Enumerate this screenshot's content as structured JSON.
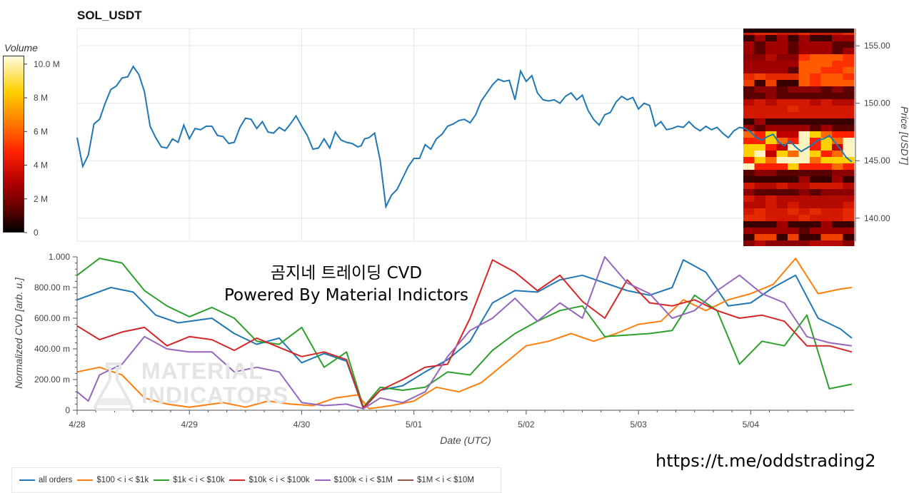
{
  "chart_data": [
    {
      "type": "line",
      "title": "SOL_USDT",
      "ylabel": "Price [USDT]",
      "ylim": [
        138,
        156.5
      ],
      "yticks": [
        "140.00",
        "145.00",
        "150.00",
        "155.00"
      ],
      "xlim": [
        0,
        6.92
      ],
      "xtick_labels": [
        "4/28",
        "4/29",
        "4/30",
        "5/01",
        "5/02",
        "5/03",
        "5/04"
      ],
      "grid": true,
      "series": [
        {
          "color": "#1f77b4",
          "x": [
            0,
            0.05,
            0.1,
            0.15,
            0.2,
            0.25,
            0.3,
            0.35,
            0.4,
            0.45,
            0.5,
            0.55,
            0.6,
            0.65,
            0.7,
            0.75,
            0.8,
            0.85,
            0.9,
            0.95,
            1.0,
            1.05,
            1.1,
            1.15,
            1.2,
            1.25,
            1.3,
            1.35,
            1.4,
            1.45,
            1.5,
            1.55,
            1.6,
            1.65,
            1.7,
            1.75,
            1.8,
            1.85,
            1.9,
            1.95,
            2.0,
            2.05,
            2.1,
            2.15,
            2.2,
            2.25,
            2.3,
            2.35,
            2.4,
            2.45,
            2.5,
            2.53,
            2.56,
            2.6,
            2.65,
            2.7,
            2.75,
            2.8,
            2.85,
            2.9,
            2.95,
            3.0,
            3.05,
            3.1,
            3.15,
            3.2,
            3.25,
            3.3,
            3.35,
            3.4,
            3.45,
            3.5,
            3.55,
            3.6,
            3.65,
            3.7,
            3.75,
            3.8,
            3.85,
            3.9,
            3.95,
            4.0,
            4.05,
            4.1,
            4.15,
            4.2,
            4.25,
            4.3,
            4.35,
            4.4,
            4.45,
            4.5,
            4.55,
            4.6,
            4.65,
            4.7,
            4.75,
            4.8,
            4.85,
            4.9,
            4.95,
            5.0,
            5.05,
            5.1,
            5.15,
            5.2,
            5.25,
            5.3,
            5.35,
            5.4,
            5.45,
            5.5,
            5.55,
            5.6,
            5.65,
            5.7,
            5.75,
            5.8,
            5.85,
            5.9,
            5.95,
            6.0,
            6.05,
            6.1,
            6.15,
            6.2,
            6.25,
            6.3,
            6.35,
            6.4,
            6.45,
            6.5,
            6.55,
            6.6,
            6.65,
            6.7,
            6.75,
            6.8,
            6.85,
            6.9
          ],
          "y": [
            147.0,
            144.5,
            145.5,
            148.2,
            148.6,
            150.0,
            151.2,
            151.5,
            152.2,
            152.3,
            153.2,
            152.5,
            151.0,
            148.0,
            147.0,
            146.2,
            146.1,
            146.9,
            146.6,
            148.1,
            146.9,
            147.8,
            147.7,
            148.0,
            148.0,
            147.2,
            147.1,
            146.5,
            146.6,
            147.9,
            148.7,
            148.6,
            147.8,
            148.4,
            147.5,
            147.4,
            147.9,
            147.6,
            148.2,
            148.9,
            148.0,
            147.2,
            146.0,
            146.1,
            146.9,
            146.1,
            147.5,
            146.8,
            146.6,
            146.5,
            146.2,
            146.3,
            146.9,
            147.0,
            147.4,
            145.0,
            141.0,
            142.0,
            142.5,
            143.5,
            144.5,
            145.2,
            145.2,
            146.4,
            146.0,
            146.9,
            147.3,
            148.0,
            148.2,
            148.5,
            148.6,
            148.3,
            149.0,
            150.2,
            150.9,
            151.6,
            152.1,
            151.9,
            152.0,
            150.3,
            152.8,
            151.9,
            152.4,
            150.9,
            150.3,
            150.2,
            150.3,
            150.0,
            150.6,
            150.9,
            150.3,
            150.7,
            149.4,
            148.6,
            148.1,
            149.0,
            149.2,
            150.1,
            150.6,
            150.3,
            150.5,
            149.5,
            150.0,
            149.8,
            148.0,
            148.4,
            147.7,
            147.8,
            148.0,
            147.9,
            148.4,
            147.9,
            147.6,
            148.0,
            147.7,
            147.9,
            147.4,
            147.0,
            147.6,
            147.9,
            147.8,
            147.5,
            147.0,
            146.8,
            147.1,
            147.3,
            146.6,
            146.3,
            146.7,
            146.2,
            145.8,
            146.1,
            146.4,
            146.8,
            146.9,
            147.2,
            146.6,
            146.0,
            145.3,
            144.9
          ]
        }
      ],
      "heatmap_colorbar": {
        "label": "Volume",
        "ticks": [
          "0",
          "2 M",
          "4 M",
          "6 M",
          "8 M",
          "10.0 M"
        ],
        "range": [
          0,
          10500000
        ]
      }
    },
    {
      "type": "line",
      "xlabel": "Date (UTC)",
      "ylabel": "Normalized CVD [arb. u.]",
      "ylim": [
        0,
        1000
      ],
      "yticks": [
        "0",
        "200.00 m",
        "400.00 m",
        "600.00 m",
        "800.00 m",
        "1.000"
      ],
      "xlim": [
        0,
        6.92
      ],
      "xtick_labels": [
        "4/28",
        "4/29",
        "4/30",
        "5/01",
        "5/02",
        "5/03",
        "5/04"
      ],
      "series": [
        {
          "name": "all orders",
          "color": "#1f77b4",
          "x": [
            0,
            0.3,
            0.5,
            0.7,
            0.9,
            1.2,
            1.4,
            1.6,
            1.8,
            2.0,
            2.2,
            2.4,
            2.55,
            2.7,
            2.9,
            3.1,
            3.3,
            3.5,
            3.7,
            3.9,
            4.1,
            4.3,
            4.5,
            4.7,
            4.9,
            5.1,
            5.3,
            5.4,
            5.6,
            5.8,
            6.0,
            6.2,
            6.4,
            6.6,
            6.8,
            6.9
          ],
          "y": [
            720,
            800,
            770,
            620,
            570,
            600,
            500,
            430,
            470,
            310,
            370,
            320,
            10,
            130,
            160,
            250,
            330,
            450,
            700,
            780,
            770,
            850,
            880,
            830,
            780,
            750,
            800,
            980,
            900,
            680,
            700,
            800,
            880,
            600,
            530,
            470
          ]
        },
        {
          "name": "$100 < i < $1k",
          "color": "#ff7f0e",
          "x": [
            0,
            0.2,
            0.4,
            0.6,
            0.8,
            1.0,
            1.3,
            1.5,
            1.7,
            1.9,
            2.1,
            2.3,
            2.5,
            2.6,
            2.8,
            3.0,
            3.2,
            3.4,
            3.6,
            3.8,
            4.0,
            4.2,
            4.4,
            4.6,
            4.8,
            5.0,
            5.2,
            5.4,
            5.6,
            5.8,
            6.0,
            6.2,
            6.4,
            6.6,
            6.8,
            6.9
          ],
          "y": [
            250,
            280,
            230,
            80,
            40,
            20,
            50,
            20,
            60,
            40,
            30,
            80,
            100,
            10,
            30,
            60,
            150,
            120,
            180,
            300,
            420,
            450,
            500,
            450,
            500,
            560,
            580,
            720,
            650,
            720,
            760,
            820,
            990,
            760,
            790,
            800
          ]
        },
        {
          "name": "$1k < i < $10k",
          "color": "#2ca02c",
          "x": [
            0,
            0.2,
            0.4,
            0.6,
            0.8,
            1.0,
            1.2,
            1.4,
            1.6,
            1.8,
            2.0,
            2.2,
            2.4,
            2.55,
            2.7,
            2.9,
            3.1,
            3.3,
            3.5,
            3.7,
            3.9,
            4.1,
            4.3,
            4.5,
            4.7,
            4.9,
            5.1,
            5.3,
            5.5,
            5.7,
            5.9,
            6.1,
            6.3,
            6.5,
            6.7,
            6.9
          ],
          "y": [
            880,
            990,
            960,
            780,
            680,
            610,
            670,
            600,
            450,
            430,
            540,
            280,
            380,
            20,
            150,
            130,
            150,
            250,
            230,
            390,
            500,
            580,
            650,
            680,
            480,
            490,
            500,
            520,
            750,
            650,
            300,
            450,
            420,
            620,
            140,
            170
          ]
        },
        {
          "name": "$10k < i < $100k",
          "color": "#d62728",
          "x": [
            0,
            0.2,
            0.4,
            0.6,
            0.8,
            1.0,
            1.2,
            1.4,
            1.6,
            1.8,
            2.0,
            2.2,
            2.4,
            2.55,
            2.7,
            2.9,
            3.1,
            3.3,
            3.5,
            3.7,
            3.9,
            4.1,
            4.3,
            4.5,
            4.7,
            4.9,
            5.1,
            5.3,
            5.5,
            5.7,
            5.9,
            6.1,
            6.3,
            6.5,
            6.7,
            6.9
          ],
          "y": [
            550,
            460,
            510,
            540,
            420,
            480,
            460,
            390,
            470,
            410,
            350,
            380,
            330,
            15,
            130,
            200,
            280,
            300,
            600,
            980,
            900,
            780,
            880,
            710,
            600,
            850,
            700,
            680,
            720,
            650,
            600,
            620,
            580,
            420,
            420,
            380
          ]
        },
        {
          "name": "$100k < i < $1M",
          "color": "#9467bd",
          "x": [
            0,
            0.1,
            0.2,
            0.4,
            0.6,
            0.8,
            1.0,
            1.2,
            1.4,
            1.6,
            1.8,
            2.0,
            2.2,
            2.4,
            2.55,
            2.7,
            2.9,
            3.1,
            3.3,
            3.5,
            3.7,
            3.9,
            4.1,
            4.3,
            4.5,
            4.7,
            4.9,
            5.1,
            5.3,
            5.5,
            5.7,
            5.9,
            6.1,
            6.3,
            6.5,
            6.7,
            6.9
          ],
          "y": [
            120,
            60,
            230,
            300,
            480,
            400,
            380,
            380,
            250,
            280,
            250,
            50,
            30,
            40,
            10,
            80,
            50,
            120,
            350,
            520,
            600,
            730,
            580,
            700,
            600,
            1000,
            830,
            760,
            600,
            650,
            780,
            880,
            760,
            700,
            480,
            440,
            420
          ]
        },
        {
          "name": "$1M < i < $10M",
          "color": "#8c564b",
          "x": [],
          "y": []
        }
      ],
      "annotations": [
        "곰지네 트레이딩 CVD",
        "Powered By Material Indictors"
      ],
      "watermark": [
        "MATERIAL",
        "INDICATORS"
      ]
    }
  ],
  "footer_url": "https://t.me/oddstrading2"
}
